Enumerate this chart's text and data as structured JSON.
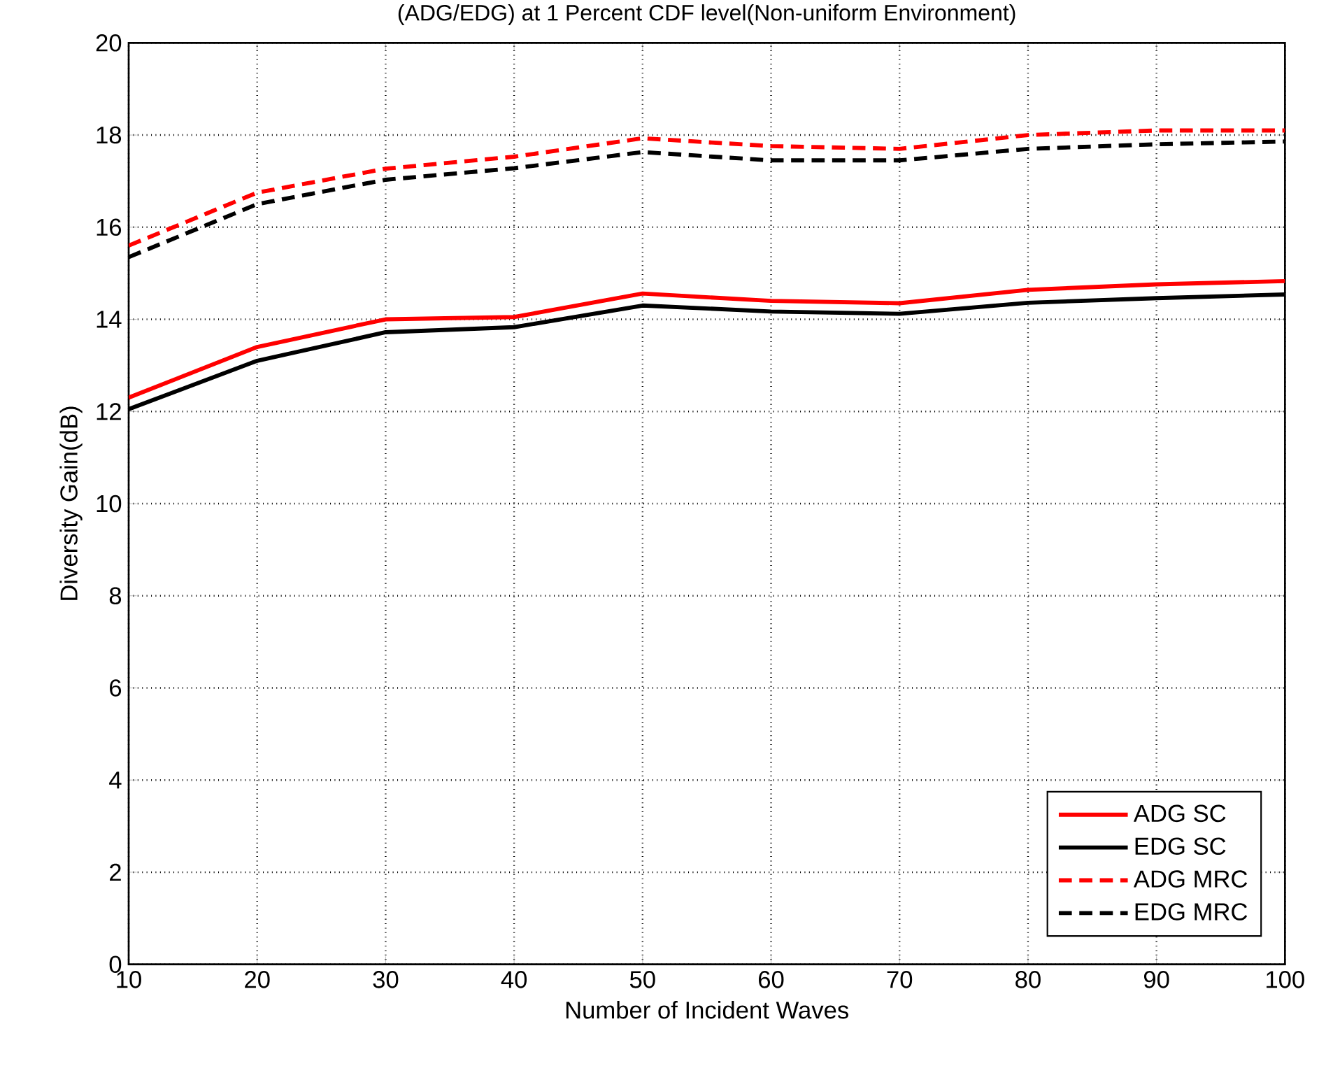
{
  "chart_data": {
    "type": "line",
    "title": "(ADG/EDG) at 1 Percent CDF level(Non-uniform Environment)",
    "xlabel": "Number of Incident Waves",
    "ylabel": "Diversity Gain(dB)",
    "x": [
      10,
      20,
      30,
      40,
      50,
      60,
      70,
      80,
      90,
      100
    ],
    "series": [
      {
        "name": "ADG SC",
        "color": "#ff0000",
        "line_style": "solid",
        "values": [
          12.3,
          13.4,
          14.0,
          14.05,
          14.56,
          14.4,
          14.35,
          14.64,
          14.76,
          14.83
        ]
      },
      {
        "name": "EDG SC",
        "color": "#000000",
        "line_style": "solid",
        "values": [
          12.05,
          13.1,
          13.72,
          13.83,
          14.3,
          14.17,
          14.12,
          14.36,
          14.46,
          14.54
        ]
      },
      {
        "name": "ADG MRC",
        "color": "#ff0000",
        "line_style": "dashed",
        "values": [
          15.6,
          16.75,
          17.27,
          17.53,
          17.93,
          17.76,
          17.7,
          18.0,
          18.1,
          18.1
        ]
      },
      {
        "name": "EDG MRC",
        "color": "#000000",
        "line_style": "dashed",
        "values": [
          15.35,
          16.5,
          17.03,
          17.28,
          17.63,
          17.45,
          17.45,
          17.7,
          17.8,
          17.86
        ]
      }
    ],
    "xlim": [
      10,
      100
    ],
    "ylim": [
      0,
      20
    ],
    "xticks": [
      10,
      20,
      30,
      40,
      50,
      60,
      70,
      80,
      90,
      100
    ],
    "yticks": [
      0,
      2,
      4,
      6,
      8,
      10,
      12,
      14,
      16,
      18,
      20
    ],
    "grid": true,
    "legend": "bottom right"
  }
}
